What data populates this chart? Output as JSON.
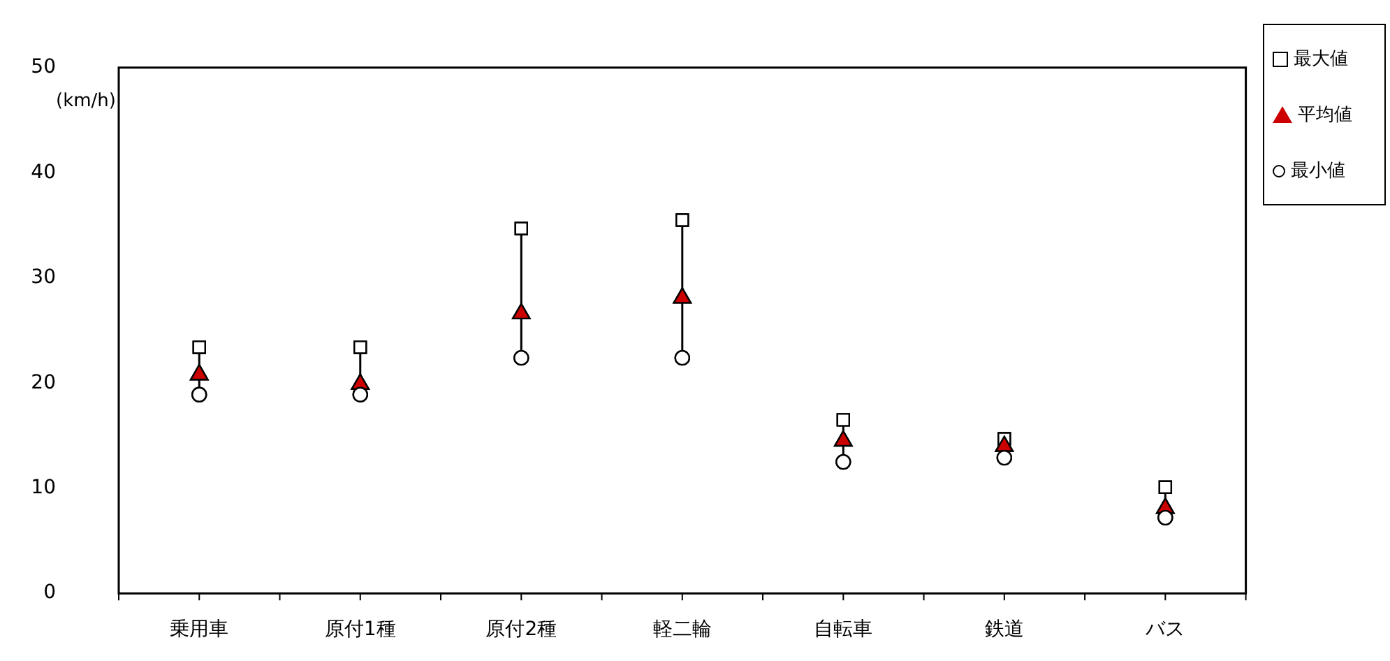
{
  "chart_data": {
    "type": "scatter",
    "ylabel": "(km/h)",
    "categories": [
      "乗用車",
      "原付1種",
      "原付2種",
      "軽二輪",
      "自転車",
      "鉄道",
      "バス"
    ],
    "ylim": [
      0,
      50
    ],
    "yticks": [
      0,
      10,
      20,
      30,
      40,
      50
    ],
    "grid": false,
    "legend": "top right",
    "series": [
      {
        "name": "最大値",
        "color": "#ffffff",
        "marker": "square",
        "values": [
          23.4,
          23.4,
          34.7,
          35.5,
          16.5,
          14.7,
          10.1
        ]
      },
      {
        "name": "平均値",
        "color": "#cc0000",
        "marker": "triangle",
        "values": [
          20.8,
          19.9,
          26.6,
          28.1,
          14.5,
          14.0,
          8.1
        ]
      },
      {
        "name": "最小値",
        "color": "#ffffff",
        "marker": "circle",
        "values": [
          18.9,
          18.9,
          22.4,
          22.4,
          12.5,
          12.9,
          7.2
        ]
      }
    ]
  }
}
